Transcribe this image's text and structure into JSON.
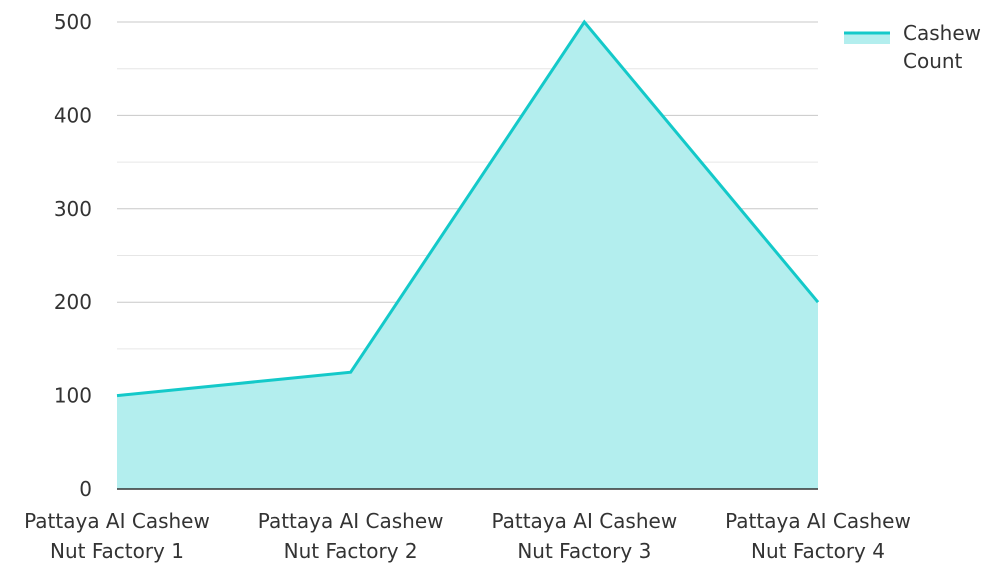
{
  "chart_data": {
    "type": "area",
    "categories": [
      [
        "Pattaya AI Cashew",
        "Nut Factory 1"
      ],
      [
        "Pattaya AI Cashew",
        "Nut Factory 2"
      ],
      [
        "Pattaya AI Cashew",
        "Nut Factory 3"
      ],
      [
        "Pattaya AI Cashew",
        "Nut Factory 4"
      ]
    ],
    "series": [
      {
        "name": "Cashew Count",
        "legend_lines": [
          "Cashew",
          "Count"
        ],
        "values": [
          100,
          125,
          500,
          200
        ],
        "color": "#14c9c9",
        "fill_color": "#b3eeee"
      }
    ],
    "ylim": [
      0,
      500
    ],
    "yticks": [
      0,
      100,
      200,
      300,
      400,
      500
    ],
    "minor_grid": true,
    "legend_position": "top-right",
    "title": "",
    "xlabel": "",
    "ylabel": ""
  }
}
